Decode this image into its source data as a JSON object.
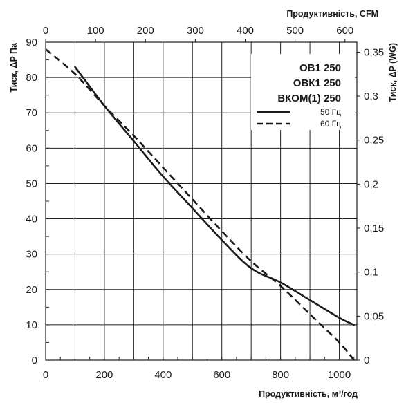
{
  "chart_data": {
    "type": "line",
    "x_axis_bottom": {
      "label": "Продуктивність, м³/год",
      "ticks": [
        "0",
        "200",
        "400",
        "600",
        "800",
        "1000"
      ],
      "range": [
        0,
        1060
      ]
    },
    "x_axis_top": {
      "label": "Продуктивність, CFM",
      "ticks": [
        "0",
        "100",
        "200",
        "300",
        "400",
        "500",
        "600"
      ]
    },
    "y_axis_left": {
      "label": "Тиск, ΔP Па",
      "ticks": [
        "0",
        "10",
        "20",
        "30",
        "40",
        "50",
        "60",
        "70",
        "80",
        "90"
      ],
      "range": [
        0,
        90
      ]
    },
    "y_axis_right": {
      "label": "Тиск, ΔP (WG)",
      "ticks": [
        "0",
        "0,05",
        "0,1",
        "0,15",
        "0,2",
        "0,25",
        "0,3",
        "0,35"
      ]
    },
    "grid": true,
    "legend": {
      "position": "top-right",
      "titles": [
        "ОВ1 250",
        "ОВК1 250",
        "ВКОМ(1) 250"
      ]
    },
    "series": [
      {
        "name": "50 Гц",
        "style": "solid",
        "color": "#1a1a1a",
        "x": [
          100,
          200,
          300,
          400,
          500,
          600,
          700,
          800,
          900,
          1000,
          1050
        ],
        "y": [
          83,
          72,
          62,
          52,
          43,
          34,
          26,
          22,
          17,
          12,
          10
        ]
      },
      {
        "name": "60 Гц",
        "style": "dashed",
        "color": "#1a1a1a",
        "x": [
          0,
          100,
          200,
          300,
          400,
          500,
          600,
          700,
          800,
          900,
          1000,
          1050
        ],
        "y": [
          88,
          81,
          72,
          63.5,
          54.5,
          45.5,
          36.5,
          28,
          21,
          13,
          5,
          0
        ]
      }
    ]
  }
}
